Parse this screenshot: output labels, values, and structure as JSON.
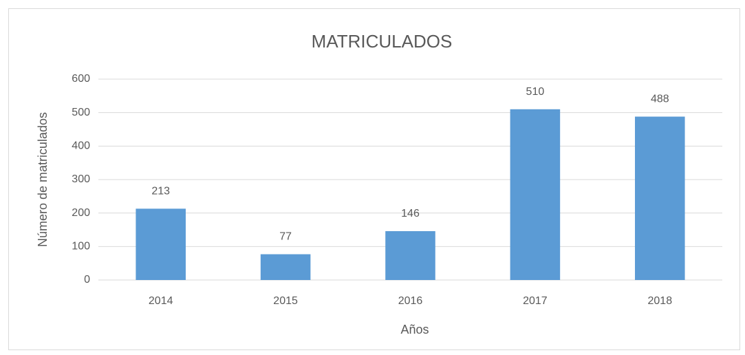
{
  "chart_data": {
    "type": "bar",
    "title": "MATRICULADOS",
    "x_label": "Años",
    "y_label": "Número de matriculados",
    "categories": [
      "2014",
      "2015",
      "2016",
      "2017",
      "2018"
    ],
    "values": [
      213,
      77,
      146,
      510,
      488
    ],
    "color": "#5b9bd5",
    "ylim": [
      0,
      600
    ],
    "yticks": [
      0,
      100,
      200,
      300,
      400,
      500,
      600
    ],
    "grid": true
  }
}
